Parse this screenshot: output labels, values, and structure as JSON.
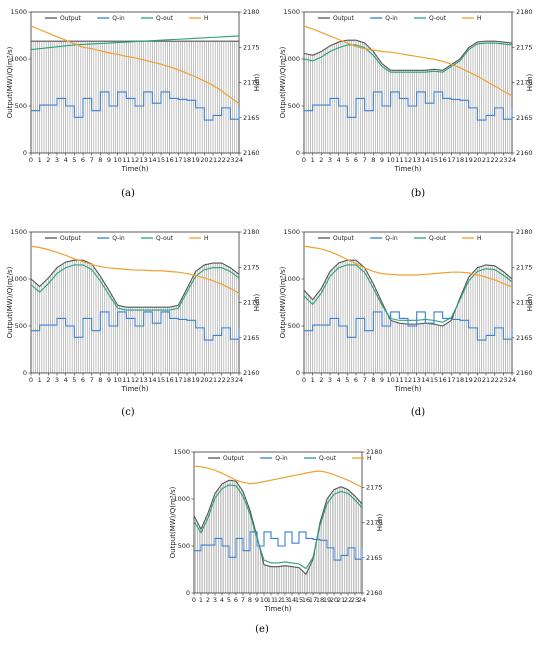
{
  "panel_labels": [
    "(a)",
    "(b)",
    "(c)",
    "(d)",
    "(e)"
  ],
  "colors": {
    "output": "#555555",
    "q_in": "#3a7fd0",
    "q_out": "#2aa07a",
    "h": "#f0a030",
    "bars": "#9a9a9a"
  },
  "chart_data": [
    {
      "type": "line",
      "panel": "(a)",
      "xlabel": "Time(h)",
      "ylabel": "Output(MW)/Q(m³/s)",
      "y2label": "H(m)",
      "xlim": [
        0,
        24
      ],
      "ylim": [
        0,
        1500
      ],
      "y2lim": [
        2160,
        2180
      ],
      "xticks": [
        "0",
        "1",
        "2",
        "3",
        "4",
        "5",
        "6",
        "7",
        "8",
        "9",
        "10",
        "11",
        "12",
        "13",
        "14",
        "15",
        "16",
        "17",
        "18",
        "19",
        "20",
        "21",
        "22",
        "23",
        "24"
      ],
      "yticks": [
        "0",
        "500",
        "1000",
        "1500"
      ],
      "y2ticks": [
        "2160",
        "2165",
        "2170",
        "2175",
        "2180"
      ],
      "legend": [
        "Output",
        "Q-in",
        "Q-out",
        "H"
      ],
      "legend_position": "top",
      "x": [
        0,
        1,
        2,
        3,
        4,
        5,
        6,
        7,
        8,
        9,
        10,
        11,
        12,
        13,
        14,
        15,
        16,
        17,
        18,
        19,
        20,
        21,
        22,
        23,
        24
      ],
      "series": [
        {
          "name": "Output",
          "axis": "left",
          "values": [
            1190,
            1190,
            1190,
            1190,
            1190,
            1190,
            1190,
            1190,
            1190,
            1190,
            1190,
            1190,
            1190,
            1190,
            1190,
            1190,
            1190,
            1190,
            1190,
            1190,
            1190,
            1190,
            1190,
            1190,
            1190
          ]
        },
        {
          "name": "Q-in",
          "axis": "left",
          "values": [
            450,
            510,
            510,
            580,
            500,
            380,
            580,
            450,
            650,
            500,
            650,
            580,
            500,
            650,
            530,
            650,
            580,
            570,
            560,
            480,
            350,
            400,
            480,
            360,
            480
          ]
        },
        {
          "name": "Q-out",
          "axis": "left",
          "values": [
            1100,
            1110,
            1120,
            1130,
            1140,
            1150,
            1155,
            1160,
            1165,
            1170,
            1175,
            1180,
            1185,
            1190,
            1195,
            1200,
            1205,
            1210,
            1215,
            1220,
            1225,
            1230,
            1235,
            1240,
            1245
          ]
        },
        {
          "name": "H",
          "axis": "right",
          "values": [
            2178,
            2177.5,
            2177,
            2176.5,
            2176,
            2175.5,
            2175,
            2174.8,
            2174.5,
            2174.2,
            2174,
            2173.7,
            2173.5,
            2173.2,
            2172.9,
            2172.6,
            2172.2,
            2171.8,
            2171.3,
            2170.8,
            2170.2,
            2169.6,
            2168.8,
            2167.9,
            2167
          ]
        }
      ]
    },
    {
      "type": "line",
      "panel": "(b)",
      "xlabel": "Time(h)",
      "ylabel": "Output(MW)/Q(m³/s)",
      "y2label": "H(m)",
      "xlim": [
        0,
        24
      ],
      "ylim": [
        0,
        1500
      ],
      "y2lim": [
        2160,
        2180
      ],
      "xticks": [
        "0",
        "1",
        "2",
        "3",
        "4",
        "5",
        "6",
        "7",
        "8",
        "9",
        "10",
        "11",
        "12",
        "13",
        "14",
        "15",
        "16",
        "17",
        "18",
        "19",
        "20",
        "21",
        "22",
        "23",
        "24"
      ],
      "yticks": [
        "0",
        "500",
        "1000",
        "1500"
      ],
      "y2ticks": [
        "2160",
        "2165",
        "2170",
        "2175",
        "2180"
      ],
      "legend": [
        "Output",
        "Q-in",
        "Q-out",
        "H"
      ],
      "legend_position": "top",
      "x": [
        0,
        1,
        2,
        3,
        4,
        5,
        6,
        7,
        8,
        9,
        10,
        11,
        12,
        13,
        14,
        15,
        16,
        17,
        18,
        19,
        20,
        21,
        22,
        23,
        24
      ],
      "series": [
        {
          "name": "Output",
          "axis": "left",
          "values": [
            1060,
            1040,
            1080,
            1140,
            1180,
            1200,
            1200,
            1170,
            1080,
            950,
            880,
            880,
            880,
            880,
            880,
            890,
            880,
            940,
            1000,
            1120,
            1180,
            1190,
            1190,
            1180,
            1170
          ]
        },
        {
          "name": "Q-in",
          "axis": "left",
          "values": [
            450,
            510,
            510,
            580,
            500,
            380,
            580,
            450,
            650,
            500,
            650,
            580,
            500,
            650,
            530,
            650,
            580,
            570,
            560,
            480,
            350,
            400,
            480,
            360,
            480
          ]
        },
        {
          "name": "Q-out",
          "axis": "left",
          "values": [
            1000,
            980,
            1020,
            1080,
            1120,
            1150,
            1150,
            1120,
            1040,
            920,
            860,
            860,
            860,
            860,
            860,
            870,
            860,
            920,
            980,
            1100,
            1160,
            1170,
            1170,
            1160,
            1150
          ]
        },
        {
          "name": "H",
          "axis": "right",
          "values": [
            2178,
            2177.6,
            2177.1,
            2176.6,
            2176.1,
            2175.6,
            2175.1,
            2174.8,
            2174.6,
            2174.4,
            2174.3,
            2174.1,
            2173.9,
            2173.7,
            2173.5,
            2173.3,
            2173,
            2172.6,
            2172.1,
            2171.5,
            2170.9,
            2170.2,
            2169.5,
            2168.8,
            2168.1
          ]
        }
      ]
    },
    {
      "type": "line",
      "panel": "(c)",
      "xlabel": "Time(h)",
      "ylabel": "Output(MW)/Q(m³/s)",
      "y2label": "H(m)",
      "xlim": [
        0,
        24
      ],
      "ylim": [
        0,
        1500
      ],
      "y2lim": [
        2160,
        2180
      ],
      "xticks": [
        "0",
        "1",
        "2",
        "3",
        "4",
        "5",
        "6",
        "7",
        "8",
        "9",
        "10",
        "11",
        "12",
        "13",
        "14",
        "15",
        "16",
        "17",
        "18",
        "19",
        "20",
        "21",
        "22",
        "23",
        "24"
      ],
      "yticks": [
        "0",
        "500",
        "1000",
        "1500"
      ],
      "y2ticks": [
        "2160",
        "2165",
        "2170",
        "2175",
        "2180"
      ],
      "legend": [
        "Output",
        "Q-in",
        "Q-out",
        "H"
      ],
      "legend_position": "top",
      "x": [
        0,
        1,
        2,
        3,
        4,
        5,
        6,
        7,
        8,
        9,
        10,
        11,
        12,
        13,
        14,
        15,
        16,
        17,
        18,
        19,
        20,
        21,
        22,
        23,
        24
      ],
      "series": [
        {
          "name": "Output",
          "axis": "left",
          "values": [
            1000,
            920,
            1010,
            1120,
            1180,
            1200,
            1200,
            1160,
            1030,
            880,
            720,
            700,
            700,
            700,
            700,
            700,
            700,
            720,
            900,
            1080,
            1150,
            1170,
            1170,
            1120,
            1050
          ]
        },
        {
          "name": "Q-in",
          "axis": "left",
          "values": [
            450,
            510,
            510,
            580,
            500,
            380,
            580,
            450,
            650,
            500,
            650,
            580,
            500,
            650,
            530,
            650,
            580,
            570,
            560,
            480,
            350,
            400,
            480,
            360,
            480
          ]
        },
        {
          "name": "Q-out",
          "axis": "left",
          "values": [
            940,
            860,
            950,
            1060,
            1120,
            1150,
            1150,
            1100,
            980,
            830,
            690,
            670,
            670,
            670,
            670,
            670,
            670,
            690,
            860,
            1030,
            1100,
            1120,
            1120,
            1080,
            1010
          ]
        },
        {
          "name": "H",
          "axis": "right",
          "values": [
            2178,
            2177.8,
            2177.5,
            2177.1,
            2176.7,
            2176.2,
            2175.8,
            2175.4,
            2175.1,
            2174.9,
            2174.8,
            2174.7,
            2174.6,
            2174.6,
            2174.5,
            2174.5,
            2174.4,
            2174.3,
            2174.1,
            2173.8,
            2173.5,
            2173.1,
            2172.6,
            2172,
            2171.3
          ]
        }
      ]
    },
    {
      "type": "line",
      "panel": "(d)",
      "xlabel": "Time(h)",
      "ylabel": "Output(MW)/Q(m³/s)",
      "y2label": "H(m)",
      "xlim": [
        0,
        24
      ],
      "ylim": [
        0,
        1500
      ],
      "y2lim": [
        2160,
        2180
      ],
      "xticks": [
        "0",
        "1",
        "2",
        "3",
        "4",
        "5",
        "6",
        "7",
        "8",
        "9",
        "10",
        "11",
        "12",
        "13",
        "14",
        "15",
        "16",
        "17",
        "18",
        "19",
        "20",
        "21",
        "22",
        "23",
        "24"
      ],
      "yticks": [
        "0",
        "500",
        "1000",
        "1500"
      ],
      "y2ticks": [
        "2160",
        "2165",
        "2170",
        "2175",
        "2180"
      ],
      "legend": [
        "Output",
        "Q-in",
        "Q-out",
        "H"
      ],
      "legend_position": "top",
      "x": [
        0,
        1,
        2,
        3,
        4,
        5,
        6,
        7,
        8,
        9,
        10,
        11,
        12,
        13,
        14,
        15,
        16,
        17,
        18,
        19,
        20,
        21,
        22,
        23,
        24
      ],
      "series": [
        {
          "name": "Output",
          "axis": "left",
          "values": [
            880,
            780,
            900,
            1080,
            1170,
            1200,
            1200,
            1120,
            950,
            750,
            560,
            530,
            520,
            520,
            530,
            520,
            500,
            560,
            800,
            1020,
            1120,
            1150,
            1140,
            1080,
            1000
          ]
        },
        {
          "name": "Q-in",
          "axis": "left",
          "values": [
            450,
            510,
            510,
            580,
            500,
            380,
            580,
            450,
            650,
            500,
            650,
            580,
            500,
            650,
            530,
            650,
            580,
            570,
            560,
            480,
            350,
            400,
            480,
            360,
            480
          ]
        },
        {
          "name": "Q-out",
          "axis": "left",
          "values": [
            820,
            730,
            850,
            1030,
            1120,
            1150,
            1150,
            1070,
            900,
            720,
            580,
            560,
            560,
            560,
            570,
            560,
            540,
            590,
            780,
            980,
            1080,
            1110,
            1100,
            1040,
            970
          ]
        },
        {
          "name": "H",
          "axis": "right",
          "values": [
            2178,
            2177.8,
            2177.6,
            2177.2,
            2176.7,
            2176.1,
            2175.5,
            2174.9,
            2174.4,
            2174.1,
            2174,
            2173.9,
            2173.9,
            2173.9,
            2174,
            2174.1,
            2174.2,
            2174.3,
            2174.3,
            2174.2,
            2173.9,
            2173.6,
            2173.2,
            2172.7,
            2172.2
          ]
        }
      ]
    },
    {
      "type": "line",
      "panel": "(e)",
      "xlabel": "Time(h)",
      "ylabel": "Output(MW)/Q(m³/s)",
      "y2label": "H(m)",
      "xlim": [
        0,
        24
      ],
      "ylim": [
        0,
        1500
      ],
      "y2lim": [
        2160,
        2180
      ],
      "xticks": [
        "0",
        "1",
        "2",
        "3",
        "4",
        "5",
        "6",
        "7",
        "8",
        "9",
        "10",
        "11",
        "12",
        "13",
        "14",
        "15",
        "16",
        "17",
        "18",
        "19",
        "20",
        "21",
        "22",
        "23",
        "24"
      ],
      "yticks": [
        "0",
        "500",
        "1000",
        "1500"
      ],
      "y2ticks": [
        "2160",
        "2165",
        "2170",
        "2175",
        "2180"
      ],
      "legend": [
        "Output",
        "Q-in",
        "Q-out",
        "H"
      ],
      "legend_position": "top",
      "x": [
        0,
        1,
        2,
        3,
        4,
        5,
        6,
        7,
        8,
        9,
        10,
        11,
        12,
        13,
        14,
        15,
        16,
        17,
        18,
        19,
        20,
        21,
        22,
        23,
        24
      ],
      "series": [
        {
          "name": "Output",
          "axis": "left",
          "values": [
            820,
            680,
            850,
            1060,
            1160,
            1200,
            1190,
            1080,
            880,
            600,
            300,
            280,
            280,
            290,
            280,
            270,
            200,
            360,
            750,
            1000,
            1100,
            1130,
            1100,
            1030,
            950
          ]
        },
        {
          "name": "Q-in",
          "axis": "left",
          "values": [
            450,
            510,
            510,
            580,
            500,
            380,
            580,
            450,
            650,
            500,
            650,
            580,
            500,
            650,
            530,
            650,
            580,
            570,
            560,
            480,
            350,
            400,
            480,
            360,
            480
          ]
        },
        {
          "name": "Q-out",
          "axis": "left",
          "values": [
            760,
            640,
            800,
            1010,
            1110,
            1150,
            1140,
            1030,
            840,
            580,
            350,
            320,
            320,
            330,
            320,
            310,
            260,
            380,
            720,
            950,
            1050,
            1080,
            1060,
            990,
            910
          ]
        },
        {
          "name": "H",
          "axis": "right",
          "values": [
            2178,
            2177.9,
            2177.7,
            2177.4,
            2177,
            2176.5,
            2176,
            2175.7,
            2175.5,
            2175.6,
            2175.8,
            2176,
            2176.2,
            2176.4,
            2176.6,
            2176.8,
            2177,
            2177.2,
            2177.3,
            2177.1,
            2176.8,
            2176.4,
            2176,
            2175.5,
            2175
          ]
        }
      ]
    }
  ]
}
